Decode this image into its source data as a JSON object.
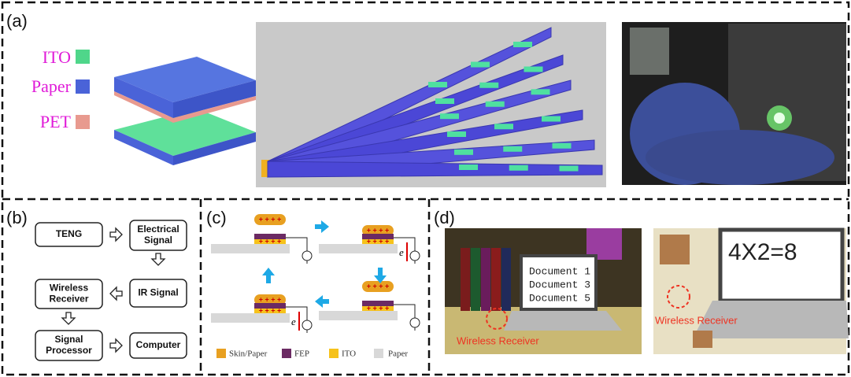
{
  "panel_a": {
    "label": "(a)",
    "legend": [
      "ITO",
      "Paper",
      "PET"
    ]
  },
  "panel_b": {
    "label": "(b)",
    "nodes": [
      [
        "TENG"
      ],
      [
        "Electrical",
        "Signal"
      ],
      [
        "IR Signal"
      ],
      [
        "Wireless",
        "Receiver"
      ],
      [
        "Signal",
        "Processor"
      ],
      [
        "Computer"
      ]
    ]
  },
  "panel_c": {
    "label": "(c)",
    "charge": "+ + + +",
    "electron": "e",
    "legend": [
      "Skin/Paper",
      "FEP",
      "ITO",
      "Paper"
    ]
  },
  "panel_d": {
    "label": "(d)",
    "screen_left": [
      "Document 1",
      "Document 3",
      "Document 5"
    ],
    "screen_right": "4X2=8",
    "receiver_labels": [
      "Wireless Receiver",
      "Wireless Receiver"
    ]
  }
}
